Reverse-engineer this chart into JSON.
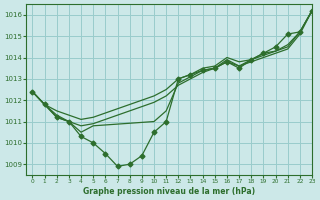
{
  "bg_color": "#cce8e8",
  "grid_color": "#99cccc",
  "line_color": "#2d6e2d",
  "title": "Graphe pression niveau de la mer (hPa)",
  "xlim": [
    -0.5,
    23
  ],
  "ylim": [
    1008.5,
    1016.5
  ],
  "yticks": [
    1009,
    1010,
    1011,
    1012,
    1013,
    1014,
    1015,
    1016
  ],
  "xticks": [
    0,
    1,
    2,
    3,
    4,
    5,
    6,
    7,
    8,
    9,
    10,
    11,
    12,
    13,
    14,
    15,
    16,
    17,
    18,
    19,
    20,
    21,
    22,
    23
  ],
  "line_smooth_upper": {
    "x": [
      0,
      1,
      2,
      3,
      4,
      5,
      6,
      7,
      8,
      9,
      10,
      11,
      12,
      13,
      14,
      15,
      16,
      17,
      18,
      19,
      20,
      21,
      22,
      23
    ],
    "y": [
      1012.4,
      1011.8,
      1011.5,
      1011.3,
      1011.1,
      1011.2,
      1011.4,
      1011.6,
      1011.8,
      1012.0,
      1012.2,
      1012.5,
      1013.0,
      1013.2,
      1013.5,
      1013.6,
      1014.0,
      1013.8,
      1013.9,
      1014.2,
      1014.3,
      1014.5,
      1015.2,
      1016.2
    ]
  },
  "line_smooth_lower": {
    "x": [
      0,
      1,
      2,
      3,
      4,
      5,
      6,
      7,
      8,
      9,
      10,
      11,
      12,
      13,
      14,
      15,
      16,
      17,
      18,
      19,
      20,
      21,
      22,
      23
    ],
    "y": [
      1012.4,
      1011.8,
      1011.2,
      1011.0,
      1010.8,
      1010.9,
      1011.1,
      1011.3,
      1011.5,
      1011.7,
      1011.9,
      1012.2,
      1012.7,
      1013.0,
      1013.3,
      1013.5,
      1013.8,
      1013.6,
      1013.8,
      1014.0,
      1014.2,
      1014.4,
      1015.1,
      1016.2
    ]
  },
  "line_mid": {
    "x": [
      0,
      1,
      2,
      3,
      4,
      5,
      10,
      11,
      12,
      13,
      14,
      15,
      16,
      17,
      18,
      19,
      20,
      21,
      22,
      23
    ],
    "y": [
      1012.4,
      1011.8,
      1011.3,
      1011.0,
      1010.5,
      1010.8,
      1011.0,
      1011.5,
      1012.8,
      1013.1,
      1013.4,
      1013.5,
      1013.9,
      1013.6,
      1013.9,
      1014.1,
      1014.3,
      1014.6,
      1015.2,
      1016.2
    ]
  },
  "line_jagged": {
    "x": [
      0,
      1,
      2,
      3,
      4,
      5,
      6,
      7,
      8,
      9,
      10,
      11,
      12,
      13,
      14,
      15,
      16,
      17,
      18,
      19,
      20,
      21,
      22,
      23
    ],
    "y": [
      1012.4,
      1011.8,
      1011.2,
      1011.0,
      1010.3,
      1010.0,
      1009.5,
      1008.9,
      1009.0,
      1009.4,
      1010.5,
      1011.0,
      1013.0,
      1013.2,
      1013.4,
      1013.5,
      1013.8,
      1013.5,
      1013.9,
      1014.2,
      1014.5,
      1015.1,
      1015.2,
      1016.2
    ]
  }
}
